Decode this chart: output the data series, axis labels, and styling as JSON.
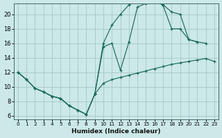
{
  "xlabel": "Humidex (Indice chaleur)",
  "background_color": "#cce8e8",
  "grid_color": "#aacccc",
  "line_color": "#1a6b5a",
  "xlim": [
    -0.5,
    23.5
  ],
  "ylim": [
    5.5,
    21.5
  ],
  "xticks": [
    0,
    1,
    2,
    3,
    4,
    5,
    6,
    7,
    8,
    9,
    10,
    11,
    12,
    13,
    14,
    15,
    16,
    17,
    18,
    19,
    20,
    21,
    22,
    23
  ],
  "yticks": [
    6,
    8,
    10,
    12,
    14,
    16,
    18,
    20
  ],
  "line1_x": [
    0,
    1,
    2,
    3,
    4,
    5,
    6,
    7,
    8,
    9,
    10,
    11,
    12,
    13,
    14,
    15,
    16,
    17,
    18,
    19,
    20,
    21,
    22,
    23
  ],
  "line1_y": [
    12.0,
    11.0,
    9.8,
    9.3,
    8.7,
    8.4,
    7.4,
    6.8,
    6.2,
    9.0,
    10.5,
    11.0,
    11.3,
    11.6,
    11.9,
    12.2,
    12.5,
    12.8,
    13.1,
    13.3,
    13.5,
    13.7,
    13.9,
    13.5
  ],
  "line2_x": [
    0,
    1,
    2,
    3,
    4,
    5,
    6,
    7,
    8,
    9,
    10,
    11,
    12,
    13,
    14,
    15,
    16,
    17,
    18,
    19,
    20,
    21,
    22
  ],
  "line2_y": [
    12.0,
    11.0,
    9.8,
    9.3,
    8.7,
    8.4,
    7.4,
    6.8,
    6.2,
    9.0,
    16.0,
    18.5,
    20.0,
    21.3,
    21.8,
    21.5,
    21.8,
    21.3,
    20.3,
    20.0,
    16.5,
    16.2,
    16.0
  ],
  "line3_x": [
    0,
    1,
    2,
    3,
    4,
    5,
    6,
    7,
    8,
    9,
    10,
    11,
    12,
    13,
    14,
    15,
    16,
    17,
    18,
    19,
    20,
    21
  ],
  "line3_y": [
    12.0,
    11.0,
    9.8,
    9.3,
    8.7,
    8.4,
    7.4,
    6.8,
    6.2,
    9.0,
    15.5,
    16.0,
    12.3,
    16.2,
    21.0,
    21.5,
    22.0,
    21.2,
    18.0,
    18.0,
    16.5,
    16.2
  ]
}
